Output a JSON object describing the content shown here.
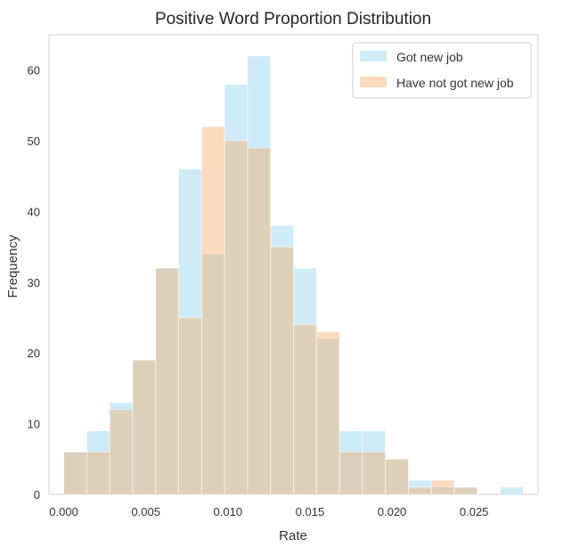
{
  "chart_data": {
    "type": "bar",
    "title": "Positive Word Proportion Distribution",
    "xlabel": "Rate",
    "ylabel": "Frequency",
    "xlim": [
      -0.0009,
      0.0289
    ],
    "ylim": [
      0,
      65
    ],
    "xticks": [
      0.0,
      0.005,
      0.01,
      0.015,
      0.02,
      0.025
    ],
    "xtick_labels": [
      "0.000",
      "0.005",
      "0.010",
      "0.015",
      "0.020",
      "0.025"
    ],
    "yticks": [
      0,
      10,
      20,
      30,
      40,
      50,
      60
    ],
    "ytick_labels": [
      "0",
      "10",
      "20",
      "30",
      "40",
      "50",
      "60"
    ],
    "grid": false,
    "legend_position": "top-right",
    "alpha": 0.4,
    "series": [
      {
        "name": "Got new job",
        "color": "#87CEEB",
        "bin_start": 0.0,
        "bin_width": 0.0014,
        "values": [
          6,
          9,
          13,
          19,
          32,
          46,
          34,
          58,
          62,
          38,
          32,
          22,
          9,
          9,
          5,
          2,
          1,
          1,
          0,
          1
        ]
      },
      {
        "name": "Have not got new job",
        "color": "#F4A460",
        "bin_start": 0.0,
        "bin_width": 0.0014,
        "values": [
          6,
          6,
          12,
          19,
          32,
          25,
          52,
          50,
          49,
          35,
          24,
          23,
          6,
          6,
          5,
          1,
          2,
          1
        ]
      }
    ]
  }
}
